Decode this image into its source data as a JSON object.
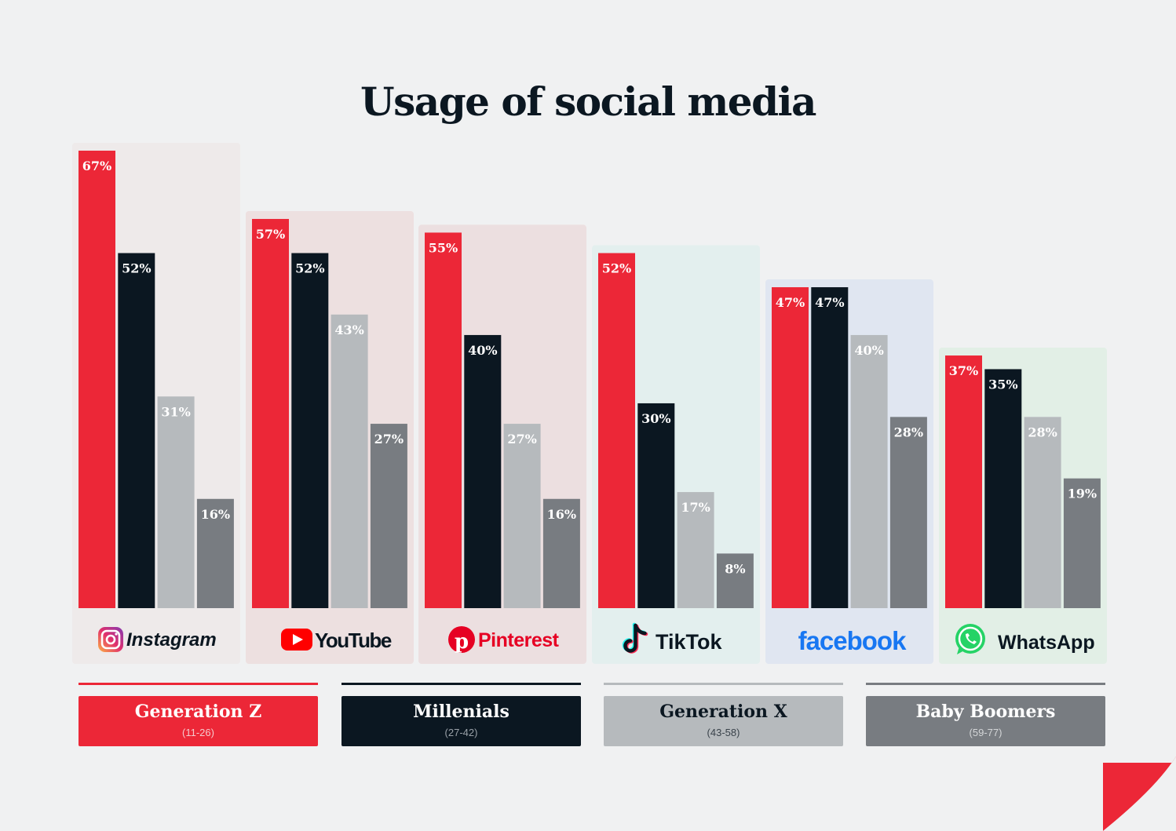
{
  "title": "Usage of social media",
  "chart_data": {
    "type": "bar",
    "categories": [
      "Instagram",
      "YouTube",
      "Pinterest",
      "TikTok",
      "facebook",
      "WhatsApp"
    ],
    "series": [
      {
        "name": "Generation Z",
        "range": "(11-26)",
        "values": [
          67,
          57,
          55,
          52,
          47,
          37
        ]
      },
      {
        "name": "Millenials",
        "range": "(27-42)",
        "values": [
          52,
          52,
          40,
          30,
          47,
          35
        ]
      },
      {
        "name": "Generation X",
        "range": "(43-58)",
        "values": [
          31,
          43,
          27,
          17,
          40,
          28
        ]
      },
      {
        "name": "Baby Boomers",
        "range": "(59-77)",
        "values": [
          16,
          27,
          16,
          8,
          28,
          19
        ]
      }
    ],
    "value_suffix": "%",
    "ylim": [
      0,
      67
    ],
    "grid": false,
    "legend_position": "bottom"
  },
  "colors": {
    "series": [
      "#ec2737",
      "#0b1721",
      "#b6babd",
      "#787c81"
    ],
    "panels": [
      "#eeeaea",
      "#ede0e0",
      "#ecdfe0",
      "#e3efee",
      "#e0e6f1",
      "#e2efe6"
    ],
    "brand": {
      "youtube": "#ff0000",
      "pinterest": "#e60023",
      "facebook": "#1877f2",
      "whatsapp": "#25d366",
      "tiktok_cyan": "#25f4ee",
      "tiktok_pink": "#fe2c55"
    },
    "accent": "#ec2737"
  },
  "icons": [
    "instagram-logo-icon",
    "youtube-logo-icon",
    "pinterest-logo-icon",
    "tiktok-logo-icon",
    "facebook-logo-icon",
    "whatsapp-logo-icon",
    "page-corner-icon"
  ]
}
